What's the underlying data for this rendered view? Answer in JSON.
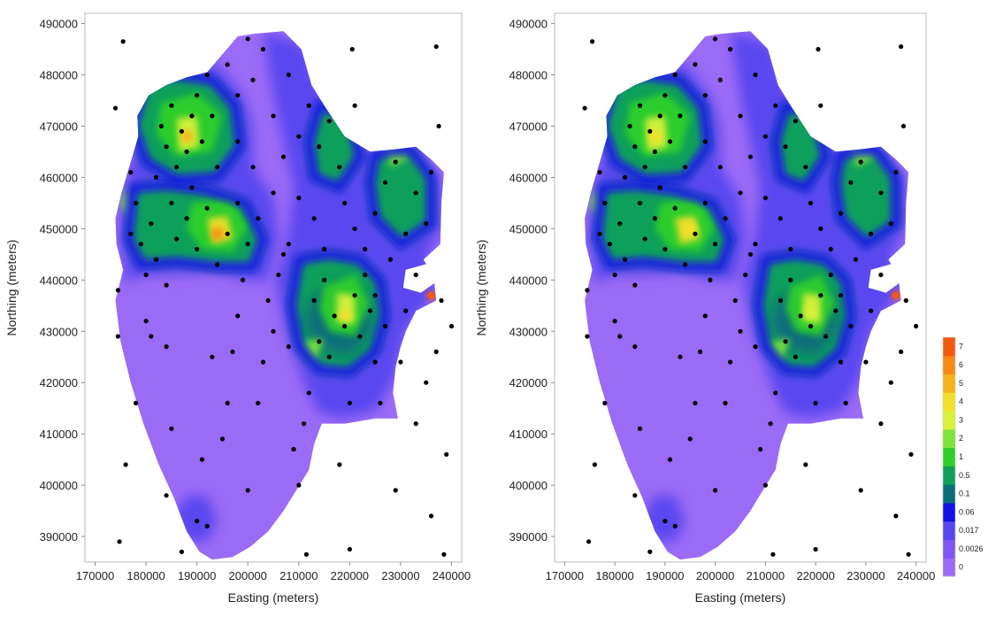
{
  "legend": {
    "labels": [
      "0",
      "0.0026",
      "0.017",
      "0.06",
      "0.1",
      "0.5",
      "1",
      "2",
      "3",
      "4",
      "5",
      "6",
      "7"
    ],
    "colors": [
      "#9b6bf5",
      "#7e57f2",
      "#5a46f0",
      "#1212e6",
      "#0a6e7a",
      "#11a05a",
      "#2fd02a",
      "#7ee33a",
      "#d8f03a",
      "#f2df2a",
      "#f5b21c",
      "#f78a16",
      "#f25a10"
    ]
  },
  "chart_data": [
    {
      "type": "heatmap",
      "title": "",
      "xlabel": "Easting (meters)",
      "ylabel": "Northing (meters)",
      "xlim": [
        168000,
        242000
      ],
      "ylim": [
        385000,
        492000
      ],
      "xticks": [
        170000,
        180000,
        190000,
        200000,
        210000,
        220000,
        230000,
        240000
      ],
      "yticks": [
        390000,
        400000,
        410000,
        420000,
        430000,
        440000,
        450000,
        460000,
        470000,
        480000,
        490000
      ],
      "color_levels": [
        "0",
        "0.0026",
        "0.017",
        "0.06",
        "0.1",
        "0.5",
        "1",
        "2",
        "3",
        "4",
        "5",
        "6",
        "7"
      ],
      "hotspots": [
        {
          "x": 188000,
          "y": 468000,
          "level": 5
        },
        {
          "x": 194000,
          "y": 449000,
          "level": 6
        },
        {
          "x": 219000,
          "y": 433000,
          "level": 4
        },
        {
          "x": 236000,
          "y": 437000,
          "level": 7
        }
      ]
    },
    {
      "type": "heatmap",
      "title": "",
      "xlabel": "Easting (meters)",
      "ylabel": "Northing (meters)",
      "xlim": [
        168000,
        242000
      ],
      "ylim": [
        385000,
        492000
      ],
      "xticks": [
        170000,
        180000,
        190000,
        200000,
        210000,
        220000,
        230000,
        240000
      ],
      "yticks": [
        390000,
        400000,
        410000,
        420000,
        430000,
        440000,
        450000,
        460000,
        470000,
        480000,
        490000
      ],
      "color_levels": [
        "0",
        "0.0026",
        "0.017",
        "0.06",
        "0.1",
        "0.5",
        "1",
        "2",
        "3",
        "4",
        "5",
        "6",
        "7"
      ],
      "hotspots": [
        {
          "x": 188000,
          "y": 468000,
          "level": 4
        },
        {
          "x": 195000,
          "y": 450000,
          "level": 4
        },
        {
          "x": 219000,
          "y": 434000,
          "level": 3
        },
        {
          "x": 236000,
          "y": 437000,
          "level": 7
        }
      ]
    }
  ],
  "sample_points": [
    [
      175500,
      486500
    ],
    [
      174000,
      473500
    ],
    [
      174500,
      438000
    ],
    [
      174500,
      429000
    ],
    [
      176000,
      404000
    ],
    [
      174800,
      389000
    ],
    [
      177000,
      461000
    ],
    [
      178000,
      455000
    ],
    [
      179000,
      447000
    ],
    [
      180000,
      441000
    ],
    [
      181000,
      451000
    ],
    [
      182000,
      460000
    ],
    [
      183000,
      470000
    ],
    [
      184000,
      466000
    ],
    [
      185000,
      474000
    ],
    [
      186000,
      462000
    ],
    [
      187000,
      469000
    ],
    [
      188000,
      465000
    ],
    [
      189000,
      472000
    ],
    [
      190000,
      476000
    ],
    [
      191000,
      467000
    ],
    [
      192000,
      480000
    ],
    [
      193000,
      472000
    ],
    [
      194000,
      462000
    ],
    [
      186000,
      448000
    ],
    [
      188000,
      452000
    ],
    [
      190000,
      446000
    ],
    [
      192000,
      454000
    ],
    [
      194000,
      443000
    ],
    [
      196000,
      449000
    ],
    [
      198000,
      455000
    ],
    [
      200000,
      447000
    ],
    [
      202000,
      452000
    ],
    [
      184000,
      439000
    ],
    [
      182000,
      444000
    ],
    [
      180000,
      432000
    ],
    [
      178000,
      416000
    ],
    [
      181000,
      429000
    ],
    [
      184000,
      427000
    ],
    [
      185000,
      411000
    ],
    [
      184000,
      398000
    ],
    [
      187000,
      387000
    ],
    [
      190000,
      393000
    ],
    [
      191000,
      405000
    ],
    [
      192000,
      392000
    ],
    [
      193000,
      425000
    ],
    [
      195000,
      409000
    ],
    [
      196000,
      416000
    ],
    [
      197000,
      426000
    ],
    [
      198000,
      433000
    ],
    [
      199000,
      440000
    ],
    [
      200000,
      399000
    ],
    [
      202000,
      416000
    ],
    [
      203000,
      424000
    ],
    [
      204000,
      436000
    ],
    [
      205000,
      430000
    ],
    [
      206000,
      441000
    ],
    [
      207000,
      445000
    ],
    [
      208000,
      427000
    ],
    [
      209000,
      407000
    ],
    [
      210000,
      400000
    ],
    [
      211000,
      412000
    ],
    [
      211500,
      386500
    ],
    [
      212000,
      418000
    ],
    [
      213000,
      436000
    ],
    [
      214000,
      428000
    ],
    [
      215000,
      440000
    ],
    [
      216000,
      425000
    ],
    [
      217000,
      433000
    ],
    [
      218000,
      404000
    ],
    [
      219000,
      431000
    ],
    [
      220000,
      416000
    ],
    [
      221000,
      437000
    ],
    [
      222000,
      429000
    ],
    [
      223000,
      441000
    ],
    [
      224000,
      434000
    ],
    [
      225000,
      424000
    ],
    [
      226000,
      416000
    ],
    [
      227000,
      431000
    ],
    [
      228000,
      444000
    ],
    [
      229000,
      399000
    ],
    [
      230000,
      424000
    ],
    [
      231000,
      434000
    ],
    [
      233000,
      412000
    ],
    [
      235000,
      420000
    ],
    [
      236000,
      394000
    ],
    [
      237000,
      426000
    ],
    [
      238000,
      436000
    ],
    [
      238500,
      386500
    ],
    [
      239000,
      406000
    ],
    [
      240000,
      431000
    ],
    [
      220000,
      387500
    ],
    [
      220500,
      485000
    ],
    [
      221000,
      474000
    ],
    [
      237000,
      485500
    ],
    [
      237500,
      470000
    ],
    [
      196000,
      482000
    ],
    [
      198000,
      476000
    ],
    [
      200000,
      487000
    ],
    [
      201000,
      479000
    ],
    [
      203000,
      485000
    ],
    [
      205000,
      472000
    ],
    [
      207000,
      464000
    ],
    [
      208000,
      480000
    ],
    [
      210000,
      468000
    ],
    [
      212000,
      474000
    ],
    [
      214000,
      466000
    ],
    [
      216000,
      471000
    ],
    [
      218000,
      462000
    ],
    [
      219000,
      455000
    ],
    [
      221000,
      450000
    ],
    [
      223000,
      446000
    ],
    [
      225000,
      453000
    ],
    [
      227000,
      459000
    ],
    [
      229000,
      463000
    ],
    [
      231000,
      449000
    ],
    [
      233000,
      457000
    ],
    [
      235000,
      451000
    ],
    [
      236000,
      461000
    ],
    [
      233000,
      441000
    ],
    [
      225000,
      437000
    ],
    [
      215000,
      446000
    ],
    [
      213000,
      452000
    ],
    [
      210000,
      456000
    ],
    [
      208000,
      447000
    ],
    [
      205000,
      457000
    ],
    [
      201000,
      462000
    ],
    [
      198000,
      467000
    ],
    [
      189000,
      458000
    ],
    [
      185000,
      455000
    ],
    [
      177000,
      449000
    ]
  ]
}
